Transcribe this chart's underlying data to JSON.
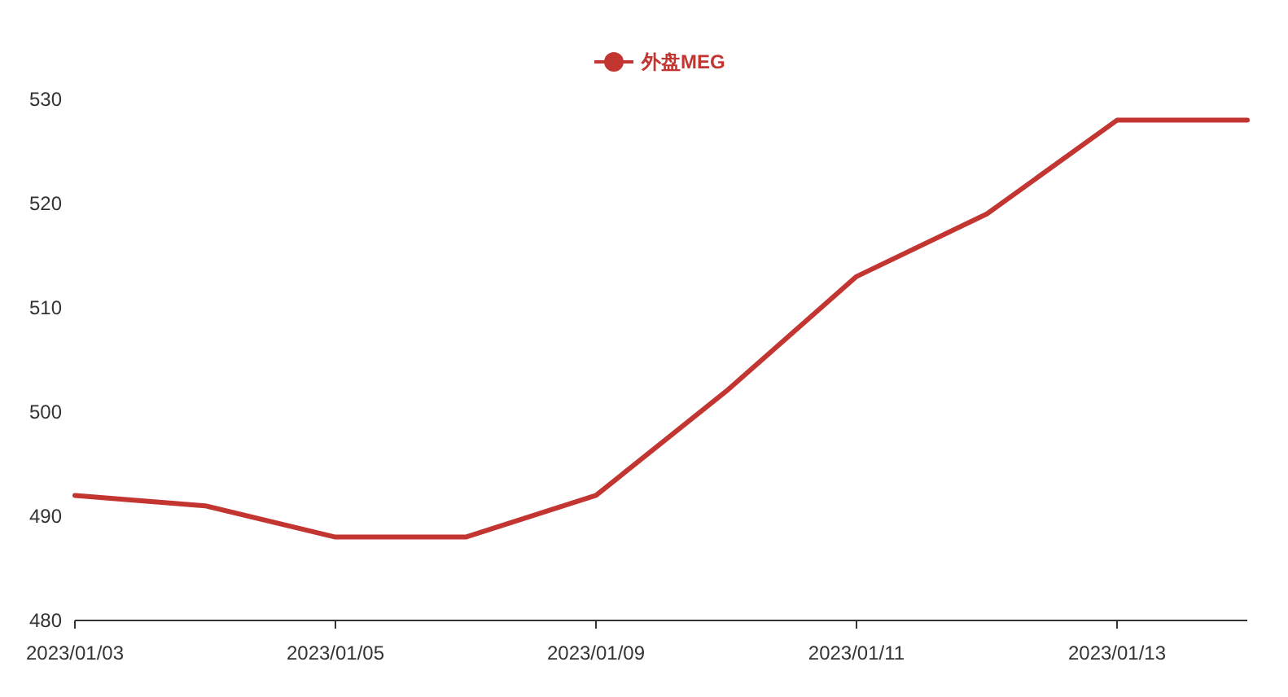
{
  "chart_data": {
    "type": "line",
    "categories": [
      "2023/01/03",
      null,
      "2023/01/05",
      null,
      "2023/01/09",
      null,
      "2023/01/11",
      null,
      "2023/01/13",
      null
    ],
    "series": [
      {
        "name": "外盘MEG",
        "color": "#c23531",
        "values": [
          492,
          491,
          488,
          488,
          492,
          502,
          513,
          519,
          528,
          528
        ]
      }
    ],
    "ylim": [
      480,
      530
    ],
    "yticks": [
      480,
      490,
      500,
      510,
      520,
      530
    ],
    "legend": "top",
    "marker": "none",
    "line_style": "solid",
    "grid": false
  }
}
